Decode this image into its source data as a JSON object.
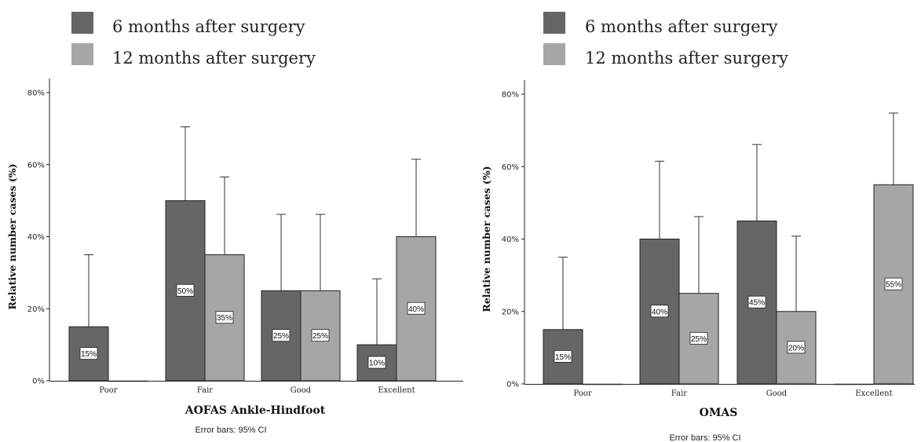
{
  "legend": {
    "items": [
      {
        "label": "6 months after surgery",
        "color": "#666666"
      },
      {
        "label": "12 months after surgery",
        "color": "#a6a6a6"
      }
    ]
  },
  "chart_data": [
    {
      "type": "bar",
      "title": "",
      "xlabel": "AOFAS Ankle-Hindfoot",
      "ylabel": "Relative number cases (%)",
      "categories": [
        "Poor",
        "Fair",
        "Good",
        "Excellent"
      ],
      "yticks": [
        "0%",
        "20%",
        "40%",
        "60%",
        "80%"
      ],
      "ylim": [
        0,
        80
      ],
      "series": [
        {
          "name": "6 months after surgery",
          "values": [
            15,
            50,
            25,
            10
          ],
          "labels": [
            "15%",
            "50%",
            "25%",
            "10%"
          ],
          "ci_upper": [
            35,
            70.5,
            46.2,
            28.3
          ]
        },
        {
          "name": "12 months after surgery",
          "values": [
            0,
            35,
            25,
            40
          ],
          "labels": [
            "",
            "35%",
            "25%",
            "40%"
          ],
          "ci_upper": [
            null,
            56.6,
            46.2,
            61.5
          ]
        }
      ],
      "note": "Error bars: 95% CI"
    },
    {
      "type": "bar",
      "title": "",
      "xlabel": "OMAS",
      "ylabel": "Relative number cases (%)",
      "categories": [
        "Poor",
        "Fair",
        "Good",
        "Excellent"
      ],
      "yticks": [
        "0%",
        "20%",
        "40%",
        "60%",
        "80%"
      ],
      "ylim": [
        0,
        80
      ],
      "series": [
        {
          "name": "6 months after surgery",
          "values": [
            15,
            40,
            45,
            0
          ],
          "labels": [
            "15%",
            "40%",
            "45%",
            ""
          ],
          "ci_upper": [
            35,
            61.5,
            66.1,
            null
          ]
        },
        {
          "name": "12 months after surgery",
          "values": [
            0,
            25,
            20,
            55
          ],
          "labels": [
            "",
            "25%",
            "20%",
            "55%"
          ],
          "ci_upper": [
            null,
            46.2,
            40.8,
            74.8
          ]
        }
      ],
      "note": "Error bars: 95% CI"
    }
  ]
}
